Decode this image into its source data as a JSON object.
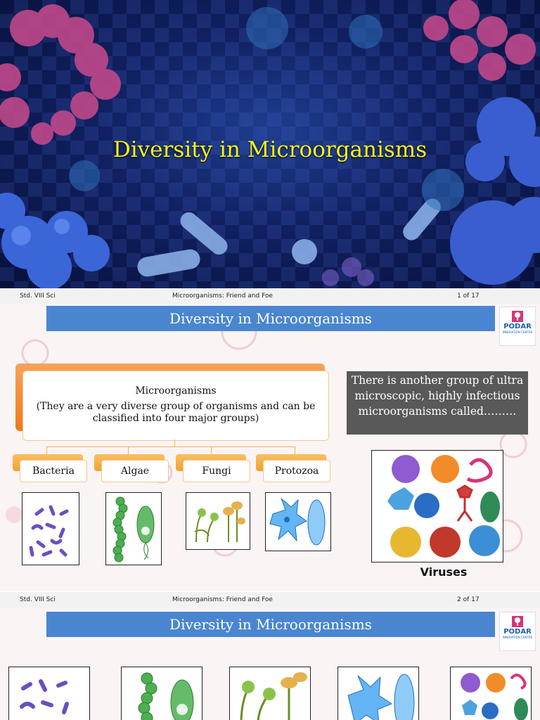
{
  "slide1": {
    "title": "Diversity in Microorganisms"
  },
  "footer1": {
    "std": "Std. VIII Sci",
    "topic": "Microorganisms: Friend and Foe",
    "page": "1 of 17"
  },
  "slide2": {
    "title": "Diversity in Microorganisms",
    "logo": {
      "brand": "PODAR",
      "sub": "INNOVATION CENTRE"
    },
    "main_heading": "Microorganisms",
    "main_desc": "(They are a very diverse group of organisms and can be classified into four major groups)",
    "groups": [
      "Bacteria",
      "Algae",
      "Fungi",
      "Protozoa"
    ],
    "virus_question": "There is another group of ultra microscopic, highly infectious microorganisms called………",
    "virus_label": "Viruses"
  },
  "footer2": {
    "std": "Std. VIII Sci",
    "topic": "Microorganisms: Friend and Foe",
    "page": "2 of 17"
  },
  "slide3": {
    "title": "Diversity in Microorganisms",
    "logo": {
      "brand": "PODAR",
      "sub": "INNOVATION CENTRE"
    }
  }
}
